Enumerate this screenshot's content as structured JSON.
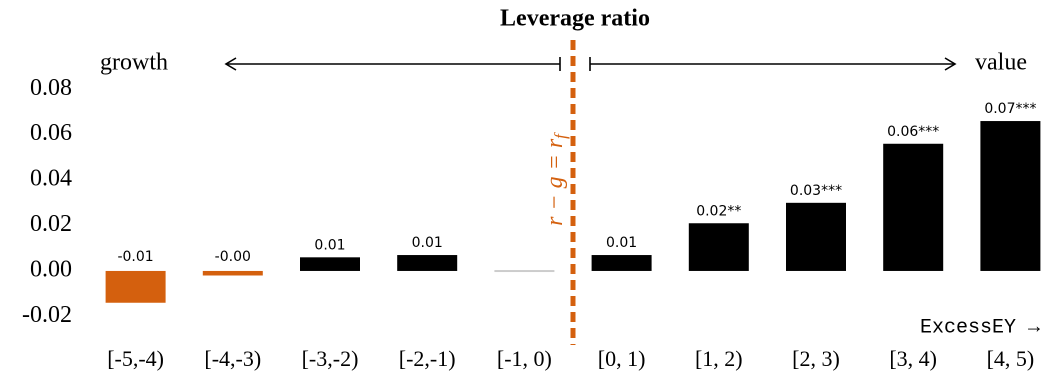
{
  "chart_data": {
    "type": "bar",
    "title": "Leverage ratio",
    "categories": [
      "[-5,-4)",
      "[-4,-3)",
      "[-3,-2)",
      "[-2,-1)",
      "[-1, 0)",
      "[0, 1)",
      "[1, 2)",
      "[2, 3)",
      "[3, 4)",
      "[4, 5)"
    ],
    "values": [
      -0.014,
      -0.002,
      0.006,
      0.007,
      0.0004,
      0.007,
      0.021,
      0.03,
      0.056,
      0.066
    ],
    "value_labels": [
      "-0.01",
      "-0.00",
      "0.01",
      "0.01",
      null,
      "0.01",
      "0.02**",
      "0.03***",
      "0.06***",
      "0.07***"
    ],
    "colors": [
      "#d4600e",
      "#d4600e",
      "#000000",
      "#000000",
      "#cccccc",
      "#000000",
      "#000000",
      "#000000",
      "#000000",
      "#000000"
    ],
    "ylim": [
      -0.026,
      0.092
    ],
    "yticks": [
      -0.02,
      {
        "value": 0,
        "label": "0.00"
      },
      0.02,
      0.04,
      0.06,
      0.08
    ],
    "grid": false,
    "annotations": {
      "left": "growth",
      "right": "value",
      "axis_note": "ExcessEY →",
      "threshold": {
        "text": "r − g = r",
        "subscript": "f"
      }
    }
  }
}
